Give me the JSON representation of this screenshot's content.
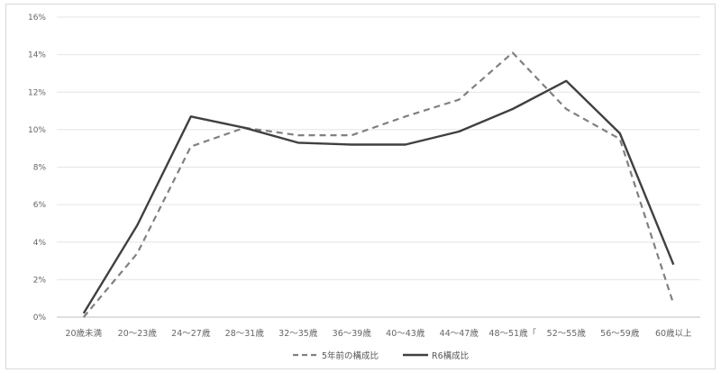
{
  "chart_data": {
    "type": "line",
    "categories": [
      "20歳未満",
      "20～23歳",
      "24～27歳",
      "28～31歳",
      "32～35歳",
      "36～39歳",
      "40～43歳",
      "44～47歳",
      "48～51歳「",
      "52～55歳",
      "56～59歳",
      "60歳以上"
    ],
    "yticks": [
      "0%",
      "2%",
      "4%",
      "6%",
      "8%",
      "10%",
      "12%",
      "14%",
      "16%"
    ],
    "ylim": [
      0,
      16
    ],
    "grid": true,
    "legend_position": "bottom",
    "series": [
      {
        "name": "5年前の構成比",
        "style": "dashed",
        "color": "#808080",
        "values": [
          0.0,
          3.4,
          9.1,
          10.1,
          9.7,
          9.7,
          10.7,
          11.6,
          14.1,
          11.1,
          9.5,
          0.7
        ]
      },
      {
        "name": "R6構成比",
        "style": "solid",
        "color": "#404040",
        "values": [
          0.2,
          4.9,
          10.7,
          10.1,
          9.3,
          9.2,
          9.2,
          9.9,
          11.1,
          12.6,
          9.8,
          2.8
        ]
      }
    ]
  }
}
